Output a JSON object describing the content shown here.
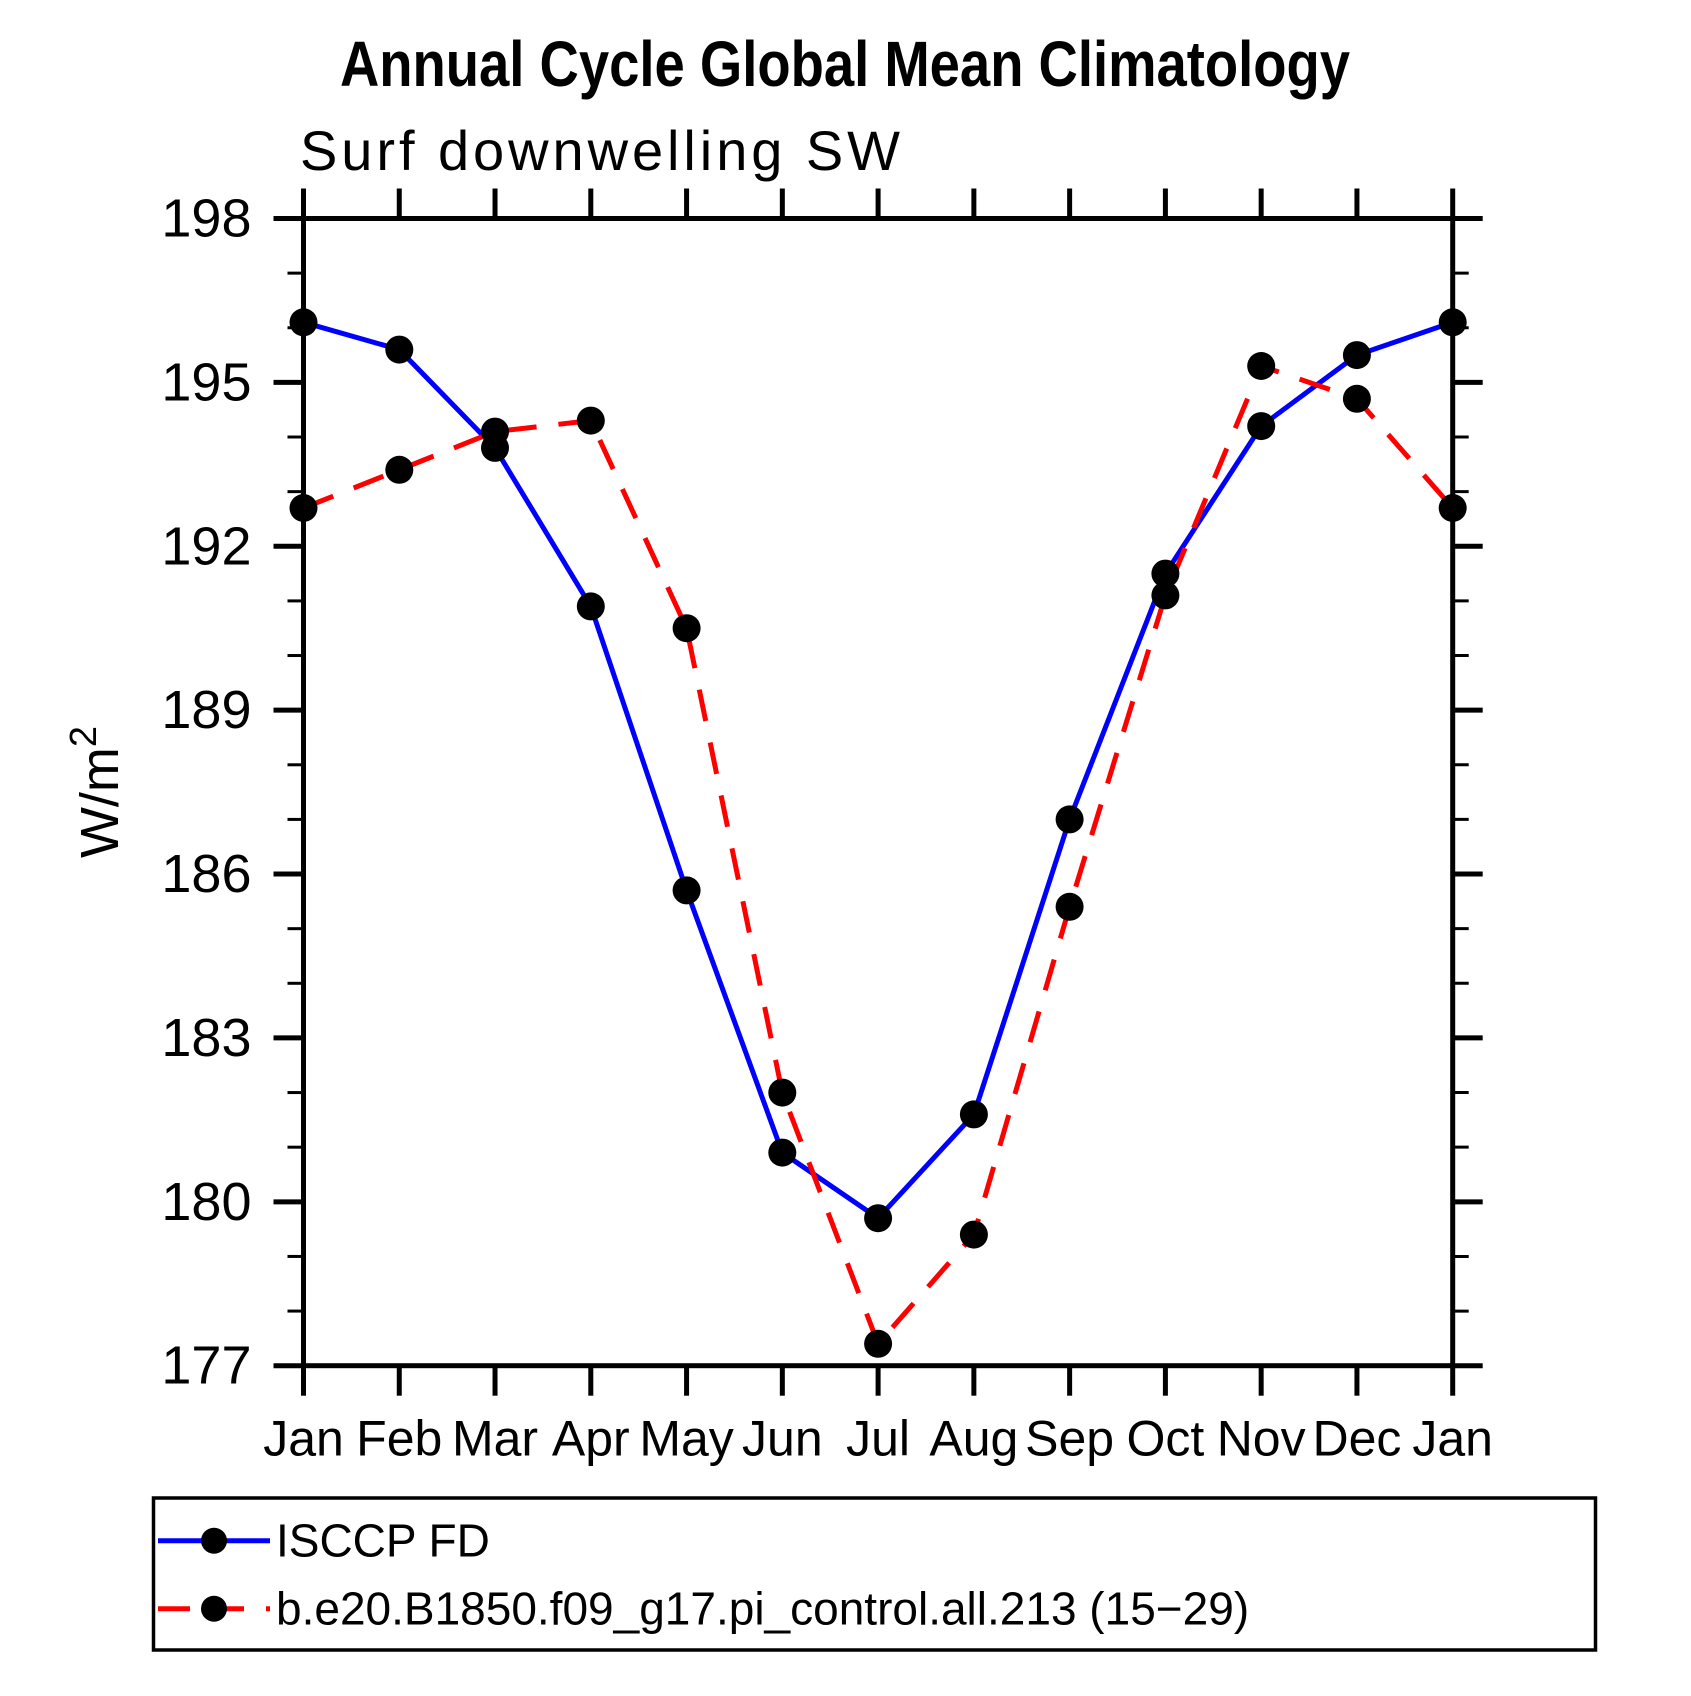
{
  "page": {
    "background": "#ffffff"
  },
  "chart_data": {
    "type": "line",
    "title": "Annual Cycle Global Mean Climatology",
    "subtitle": "Surf downwelling SW",
    "ylabel": "W/m²",
    "xlabel": "",
    "categories": [
      "Jan",
      "Feb",
      "Mar",
      "Apr",
      "May",
      "Jun",
      "Jul",
      "Aug",
      "Sep",
      "Oct",
      "Nov",
      "Dec",
      "Jan"
    ],
    "series": [
      {
        "name": "ISCCP FD",
        "color": "#0000ff",
        "line_style": "solid",
        "marker": "filled-circle",
        "marker_color": "#000000",
        "values": [
          196.1,
          195.6,
          193.8,
          190.9,
          185.7,
          180.9,
          179.7,
          181.6,
          187.0,
          191.5,
          194.2,
          195.5,
          196.1
        ]
      },
      {
        "name": "b.e20.B1850.f09_g17.pi_control.all.213 (15−29)",
        "color": "#ff0000",
        "line_style": "dashed",
        "marker": "filled-circle",
        "marker_color": "#000000",
        "values": [
          192.7,
          193.4,
          194.1,
          194.3,
          190.5,
          182.0,
          177.4,
          179.4,
          185.4,
          191.1,
          195.3,
          194.7,
          192.7
        ]
      }
    ],
    "ylim": [
      177,
      198
    ],
    "yticks_major": [
      177,
      180,
      183,
      186,
      189,
      192,
      195,
      198
    ],
    "y_minor_step": 1,
    "x_tick_every_category": true,
    "grid": false,
    "axis_color": "#000000",
    "text_color": "#000000",
    "legend_position": "bottom-left-box"
  }
}
